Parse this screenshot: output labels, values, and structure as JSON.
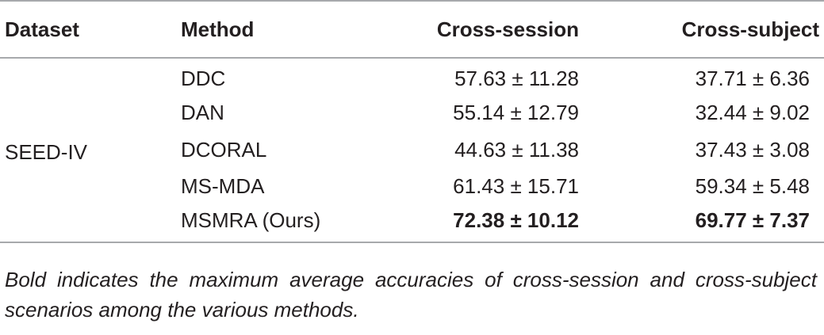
{
  "table": {
    "headers": {
      "dataset": "Dataset",
      "method": "Method",
      "cross_session": "Cross-session",
      "cross_subject": "Cross-subject"
    },
    "dataset_name": "SEED-IV",
    "rows": [
      {
        "method": "DDC",
        "cross_session": "57.63 ± 11.28",
        "cross_subject": "37.71 ± 6.36",
        "bold": false
      },
      {
        "method": "DAN",
        "cross_session": "55.14 ± 12.79",
        "cross_subject": "32.44 ± 9.02",
        "bold": false
      },
      {
        "method": "DCORAL",
        "cross_session": "44.63 ± 11.38",
        "cross_subject": "37.43 ± 3.08",
        "bold": false
      },
      {
        "method": "MS-MDA",
        "cross_session": "61.43 ± 15.71",
        "cross_subject": "59.34 ± 5.48",
        "bold": false
      },
      {
        "method": "MSMRA (Ours)",
        "cross_session": "72.38 ± 10.12",
        "cross_subject": "69.77 ± 7.37",
        "bold": true
      }
    ]
  },
  "footnote": "Bold indicates the maximum average accuracies of cross-session and cross-subject scenarios among the various methods."
}
